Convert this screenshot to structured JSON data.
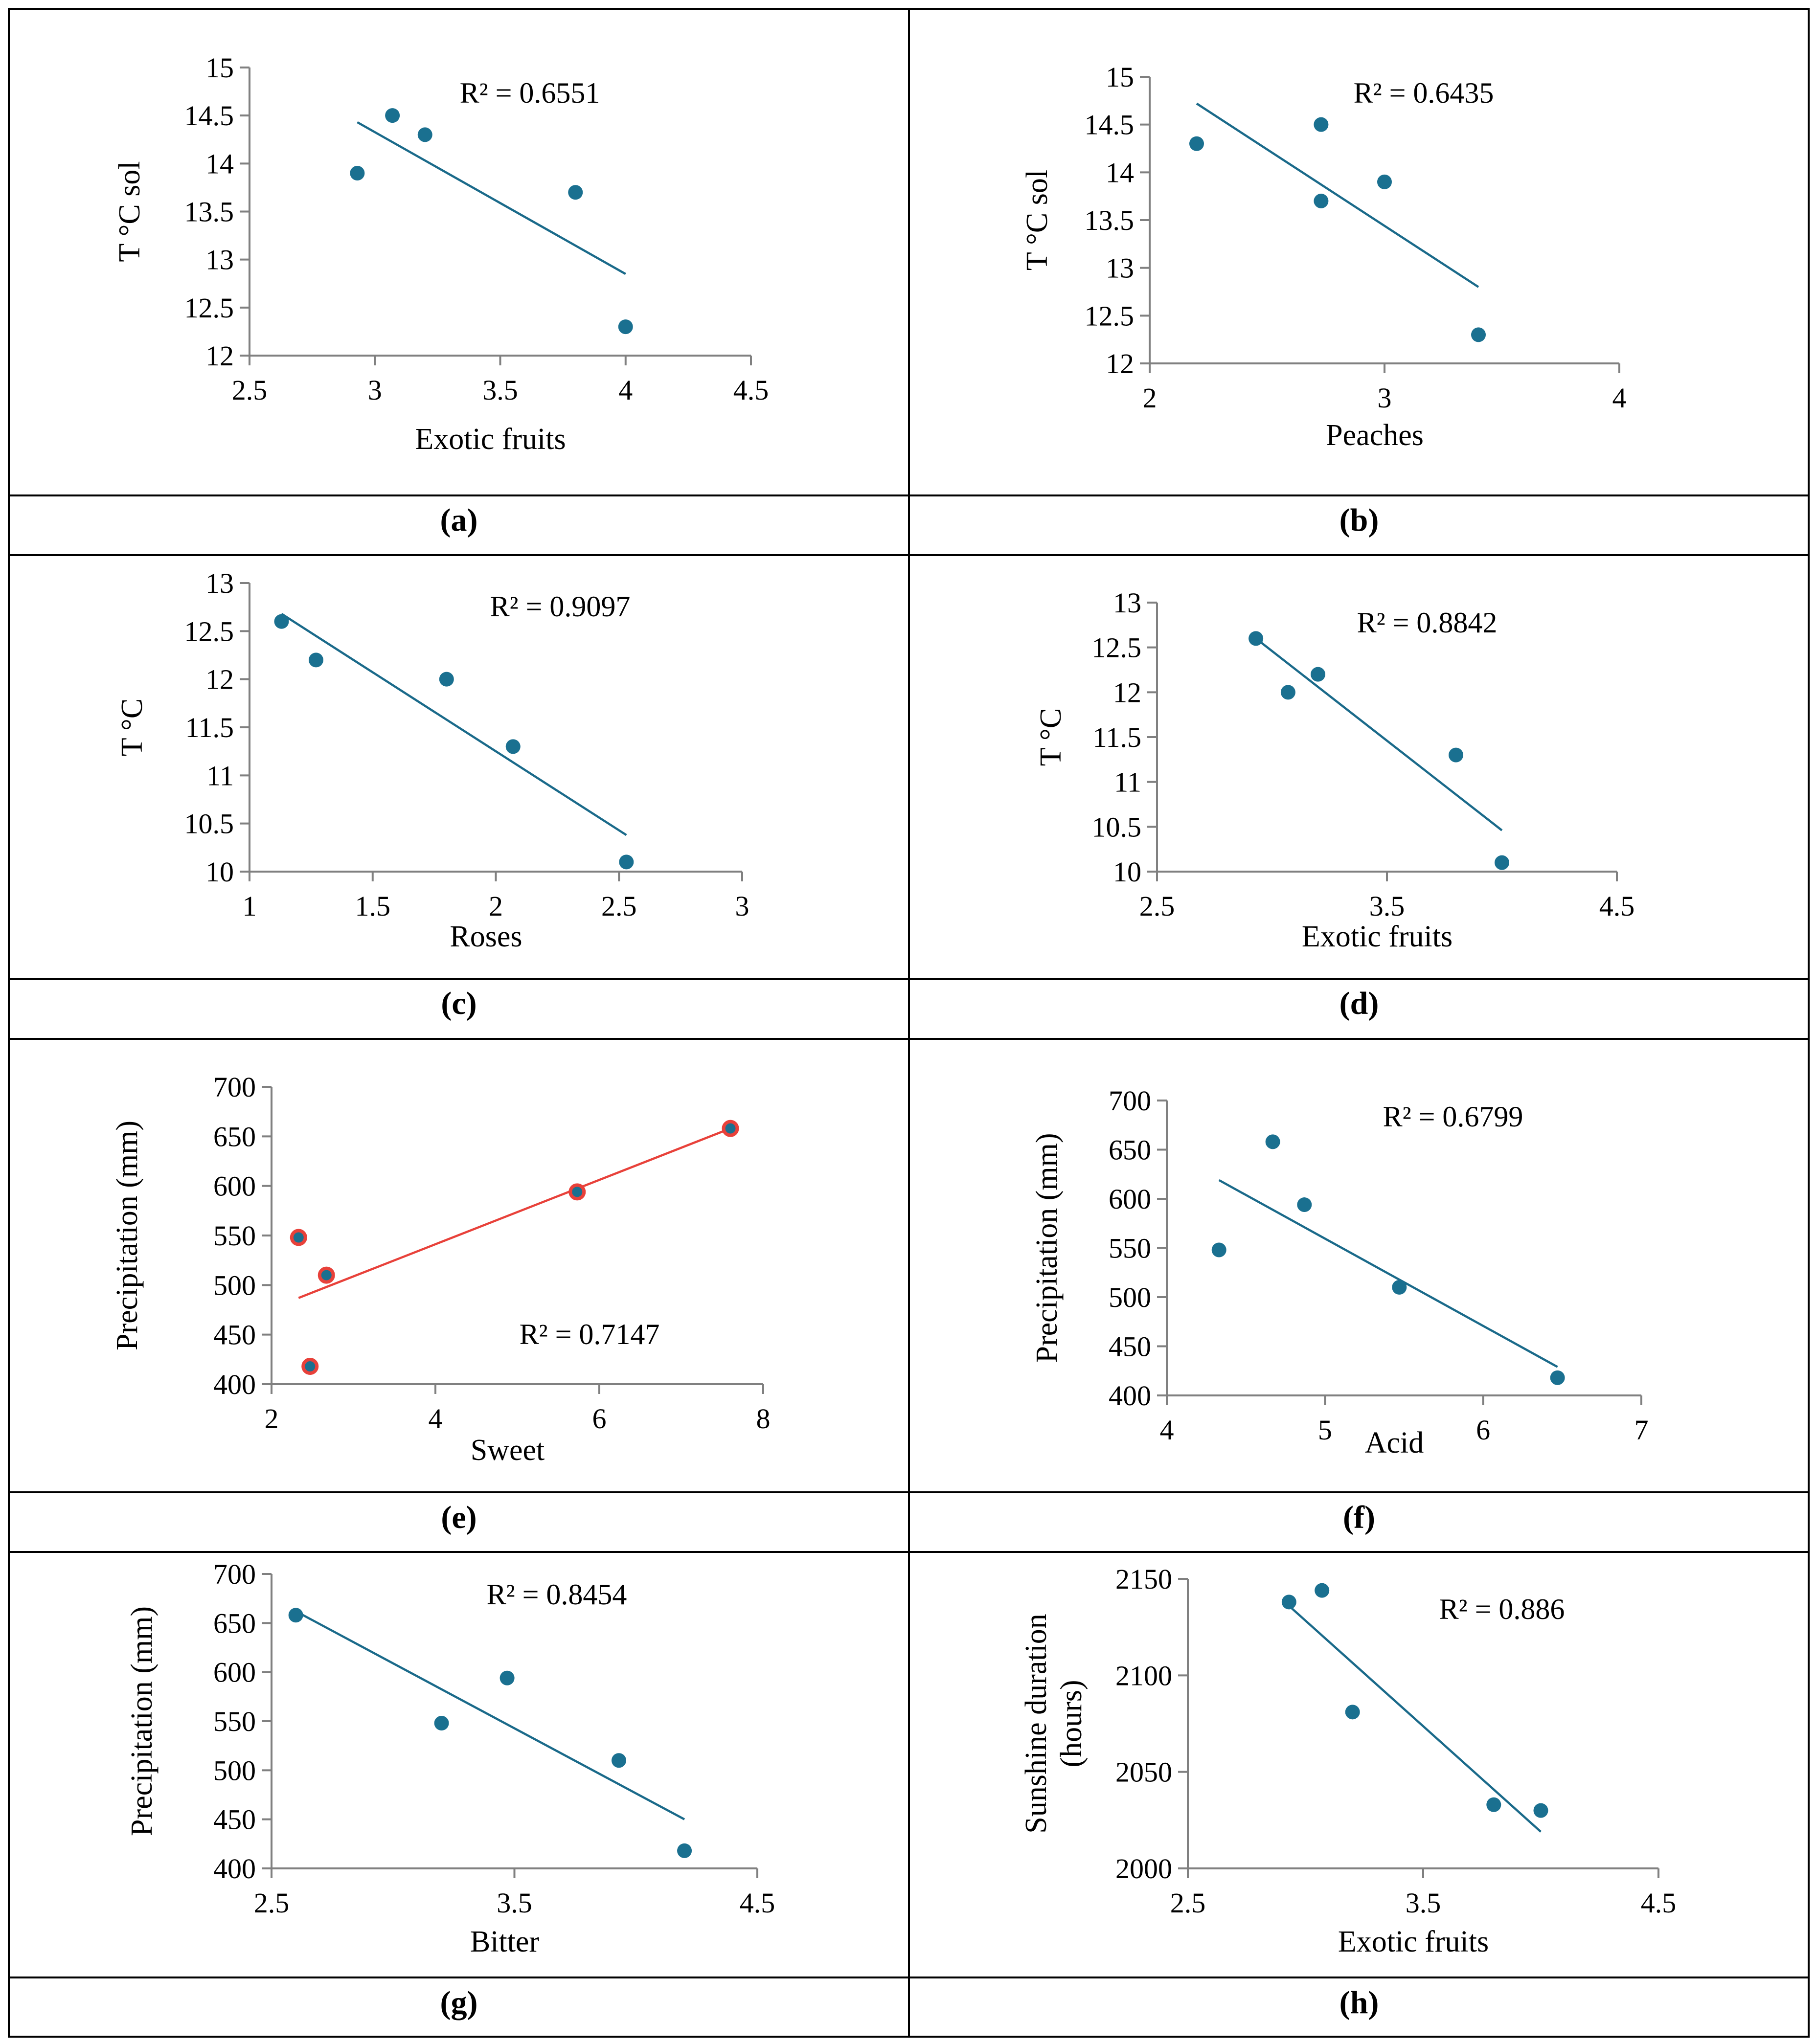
{
  "colors": {
    "series": "#1a7090",
    "trend": "#1a6a8a",
    "series_e_fill": "#1a7090",
    "series_e_edge": "#e8413a",
    "trend_e": "#e8413a",
    "axis": "#808080",
    "border": "#000000",
    "text": "#000000"
  },
  "chart_data": [
    {
      "type": "scatter",
      "panel_label": "(a)",
      "xlabel": "Exotic fruits",
      "ylabel": "T °C sol",
      "xlim": [
        2.5,
        4.5
      ],
      "ylim": [
        12,
        15
      ],
      "xticks": [
        2.5,
        3,
        3.5,
        4,
        4.5
      ],
      "yticks": [
        12,
        12.5,
        13,
        13.5,
        14,
        14.5,
        15
      ],
      "x": [
        2.93,
        3.07,
        3.2,
        3.8,
        4.0
      ],
      "y": [
        13.9,
        14.5,
        14.3,
        13.7,
        12.3
      ],
      "trendline": {
        "x": [
          2.93,
          4.0
        ],
        "y": [
          14.43,
          12.85
        ]
      },
      "r2_label": "R² = 0.6551"
    },
    {
      "type": "scatter",
      "panel_label": "(b)",
      "xlabel": "Peaches",
      "ylabel": "T °C sol",
      "xlim": [
        2,
        4
      ],
      "ylim": [
        12,
        15
      ],
      "xticks": [
        2,
        3,
        4
      ],
      "yticks": [
        12,
        12.5,
        13,
        13.5,
        14,
        14.5,
        15
      ],
      "x": [
        2.2,
        2.73,
        2.73,
        3.0,
        3.4
      ],
      "y": [
        14.3,
        14.5,
        13.7,
        13.9,
        12.3
      ],
      "trendline": {
        "x": [
          2.2,
          3.4
        ],
        "y": [
          14.72,
          12.8
        ]
      },
      "r2_label": "R² = 0.6435"
    },
    {
      "type": "scatter",
      "panel_label": "(c)",
      "xlabel": "Roses",
      "ylabel": "T °C",
      "xlim": [
        1,
        3
      ],
      "ylim": [
        10,
        13
      ],
      "xticks": [
        1,
        1.5,
        2,
        2.5,
        3
      ],
      "yticks": [
        10,
        10.5,
        11,
        11.5,
        12,
        12.5,
        13
      ],
      "x": [
        1.13,
        1.27,
        1.8,
        2.07,
        2.53
      ],
      "y": [
        12.6,
        12.2,
        12.0,
        11.3,
        10.1
      ],
      "trendline": {
        "x": [
          1.13,
          2.53
        ],
        "y": [
          12.68,
          10.38
        ]
      },
      "r2_label": "R² = 0.9097"
    },
    {
      "type": "scatter",
      "panel_label": "(d)",
      "xlabel": "Exotic fruits",
      "ylabel": "T °C",
      "xlim": [
        2.5,
        4.5
      ],
      "ylim": [
        10,
        13
      ],
      "xticks": [
        2.5,
        3.5,
        4.5
      ],
      "yticks": [
        10,
        10.5,
        11,
        11.5,
        12,
        12.5,
        13
      ],
      "x": [
        2.93,
        3.07,
        3.2,
        3.8,
        4.0
      ],
      "y": [
        12.6,
        12.0,
        12.2,
        11.3,
        10.1
      ],
      "trendline": {
        "x": [
          2.93,
          4.0
        ],
        "y": [
          12.6,
          10.46
        ]
      },
      "r2_label": "R² = 0.8842"
    },
    {
      "type": "scatter",
      "panel_label": "(e)",
      "xlabel": "Sweet",
      "ylabel": "Precipitation (mm)",
      "xlim": [
        2,
        8
      ],
      "ylim": [
        400,
        700
      ],
      "xticks": [
        2,
        4,
        6,
        8
      ],
      "yticks": [
        400,
        450,
        500,
        550,
        600,
        650,
        700
      ],
      "x": [
        2.33,
        2.47,
        2.67,
        5.73,
        7.6
      ],
      "y": [
        548,
        418,
        510,
        594,
        658
      ],
      "trendline": {
        "x": [
          2.33,
          7.6
        ],
        "y": [
          487,
          658
        ]
      },
      "r2_label": "R² = 0.7147",
      "style": "red"
    },
    {
      "type": "scatter",
      "panel_label": "(f)",
      "xlabel": "Acid",
      "ylabel": "Precipitation (mm)",
      "xlim": [
        4,
        7
      ],
      "ylim": [
        400,
        700
      ],
      "xticks": [
        4,
        5,
        6,
        7
      ],
      "yticks": [
        400,
        450,
        500,
        550,
        600,
        650,
        700
      ],
      "x": [
        4.33,
        4.67,
        4.87,
        5.47,
        6.47
      ],
      "y": [
        548,
        658,
        594,
        510,
        418
      ],
      "trendline": {
        "x": [
          4.33,
          6.47
        ],
        "y": [
          619,
          429
        ]
      },
      "r2_label": "R² = 0.6799"
    },
    {
      "type": "scatter",
      "panel_label": "(g)",
      "xlabel": "Bitter",
      "ylabel": "Precipitation (mm)",
      "xlim": [
        2.5,
        4.5
      ],
      "ylim": [
        400,
        700
      ],
      "xticks": [
        2.5,
        3.5,
        4.5
      ],
      "yticks": [
        400,
        450,
        500,
        550,
        600,
        650,
        700
      ],
      "x": [
        2.6,
        3.2,
        3.47,
        3.93,
        4.2
      ],
      "y": [
        658,
        548,
        594,
        510,
        418
      ],
      "trendline": {
        "x": [
          2.6,
          4.2
        ],
        "y": [
          662,
          450
        ]
      },
      "r2_label": "R² = 0.8454"
    },
    {
      "type": "scatter",
      "panel_label": "(h)",
      "xlabel": "Exotic fruits",
      "ylabel": "Sunshine duration (hours)",
      "ylabel_lines": [
        "Sunshine duration",
        "(hours)"
      ],
      "xlim": [
        2.5,
        4.5
      ],
      "ylim": [
        2000,
        2150
      ],
      "xticks": [
        2.5,
        3.5,
        4.5
      ],
      "yticks": [
        2000,
        2050,
        2100,
        2150
      ],
      "x": [
        2.93,
        3.07,
        3.2,
        3.8,
        4.0
      ],
      "y": [
        2138,
        2144,
        2081,
        2033,
        2030
      ],
      "trendline": {
        "x": [
          2.93,
          4.0
        ],
        "y": [
          2136,
          2019
        ]
      },
      "r2_label": "R² = 0.886"
    }
  ]
}
